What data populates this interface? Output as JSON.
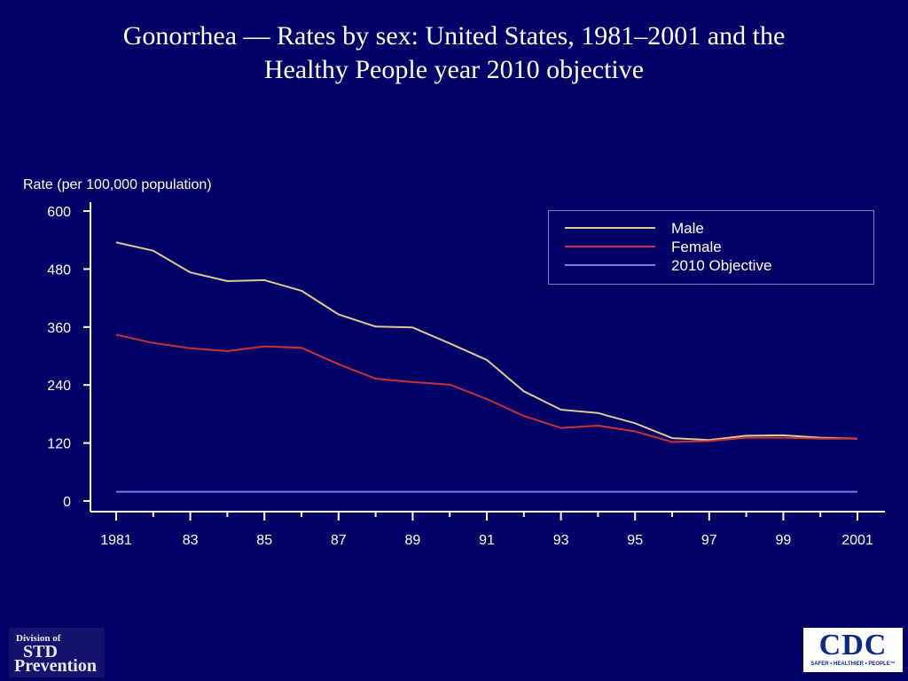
{
  "title": {
    "line1": "Gonorrhea — Rates by sex: United States, 1981–2001 and the",
    "line2": "Healthy People year 2010 objective"
  },
  "logos": {
    "std": {
      "line1": "Division of",
      "line2": "STD",
      "line3": "Prevention"
    },
    "cdc": {
      "text": "CDC",
      "tagline": "SAFER • HEALTHIER • PEOPLE™"
    }
  },
  "colors": {
    "background": "#000066",
    "axis": "#ffffff",
    "male": "#e0c890",
    "female": "#c83232",
    "objective": "#7a7ae8"
  },
  "chart_data": {
    "type": "line",
    "title": "Gonorrhea — Rates by sex: United States, 1981–2001 and the Healthy People year 2010 objective",
    "ylabel": "Rate (per 100,000 population)",
    "xlabel": "",
    "ylim": [
      0,
      600
    ],
    "yticks": [
      0,
      120,
      240,
      360,
      480,
      600
    ],
    "xlim": [
      1981,
      2001
    ],
    "xtick_labels": [
      "1981",
      "83",
      "85",
      "87",
      "89",
      "91",
      "93",
      "95",
      "97",
      "99",
      "2001"
    ],
    "xtick_values": [
      1981,
      1983,
      1985,
      1987,
      1989,
      1991,
      1993,
      1995,
      1997,
      1999,
      2001
    ],
    "grid": false,
    "legend_position": "top-right",
    "x": [
      1981,
      1982,
      1983,
      1984,
      1985,
      1986,
      1987,
      1988,
      1989,
      1990,
      1991,
      1992,
      1993,
      1994,
      1995,
      1996,
      1997,
      1998,
      1999,
      2000,
      2001
    ],
    "series": [
      {
        "name": "Male",
        "color": "#e0c890",
        "values": [
          535,
          518,
          473,
          455,
          457,
          435,
          386,
          361,
          359,
          326,
          292,
          227,
          189,
          182,
          161,
          130,
          126,
          135,
          136,
          131,
          129
        ]
      },
      {
        "name": "Female",
        "color": "#c83232",
        "values": [
          344,
          327,
          316,
          310,
          320,
          317,
          283,
          253,
          246,
          241,
          211,
          176,
          151,
          156,
          144,
          122,
          124,
          131,
          131,
          129,
          129
        ]
      },
      {
        "name": "2010 Objective",
        "color": "#7a7ae8",
        "values": [
          19,
          19,
          19,
          19,
          19,
          19,
          19,
          19,
          19,
          19,
          19,
          19,
          19,
          19,
          19,
          19,
          19,
          19,
          19,
          19,
          19
        ]
      }
    ]
  }
}
